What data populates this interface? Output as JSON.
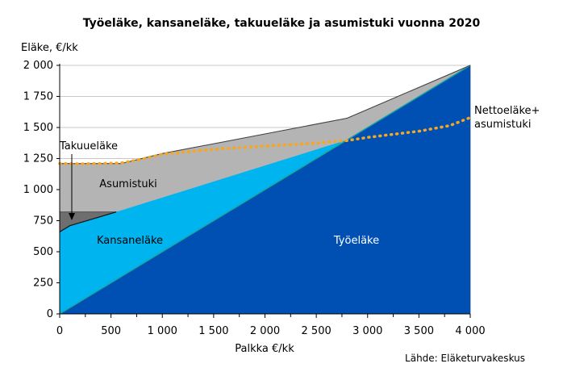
{
  "chart_data": {
    "type": "area",
    "title": "Työeläke, kansaneläke, takuueläke ja asumistuki vuonna 2020",
    "ylabel": "Eläke, €/kk",
    "xlabel": "Palkka €/kk",
    "source": "Lähde: Eläketurvakeskus",
    "xlim": [
      0,
      4000
    ],
    "ylim": [
      0,
      2000
    ],
    "x_ticks": [
      0,
      500,
      1000,
      1500,
      2000,
      2500,
      3000,
      3500,
      4000
    ],
    "x_tick_labels": [
      "0",
      "500",
      "1 000",
      "1 500",
      "2 000",
      "2 500",
      "3 000",
      "3 500",
      "4 000"
    ],
    "y_ticks": [
      0,
      250,
      500,
      750,
      1000,
      1250,
      1500,
      1750,
      2000
    ],
    "y_tick_labels": [
      "0",
      "250",
      "500",
      "750",
      "1 000",
      "1 250",
      "1 500",
      "1 750",
      "2 000"
    ],
    "grid": "horizontal",
    "series": [
      {
        "name": "Työeläke",
        "color": "#0050b4",
        "x": [
          0,
          4000
        ],
        "y": [
          0,
          2000
        ]
      },
      {
        "name": "Kansaneläke",
        "color": "#00b4f0",
        "x": [
          0,
          100,
          550,
          2800
        ],
        "y": [
          660,
          710,
          820,
          1400
        ]
      },
      {
        "name": "Takuueläke",
        "color": "#6e6e6e",
        "x": [
          0,
          100,
          550,
          580
        ],
        "y": [
          820,
          820,
          820,
          820
        ]
      },
      {
        "name": "Asumistuki",
        "color": "#b4b4b4",
        "x": [
          0,
          600,
          1000,
          2800,
          4000
        ],
        "y": [
          1210,
          1210,
          1290,
          1575,
          2000
        ]
      },
      {
        "name": "Nettoeläke+ asumistuki",
        "color": "#f5a623",
        "style": "dotted",
        "x": [
          0,
          200,
          400,
          600,
          800,
          1000,
          1500,
          2000,
          2500,
          2800,
          3000,
          3500,
          3800,
          4000
        ],
        "y": [
          1210,
          1208,
          1210,
          1215,
          1245,
          1285,
          1325,
          1350,
          1375,
          1395,
          1420,
          1470,
          1515,
          1580
        ]
      }
    ],
    "annotations": {
      "tyoelake": "Työeläke",
      "kansanelake": "Kansaneläke",
      "asumistuki": "Asumistuki",
      "takuuelake": "Takuueläke",
      "netto_line1": "Nettoeläke+",
      "netto_line2": "asumistuki"
    }
  }
}
